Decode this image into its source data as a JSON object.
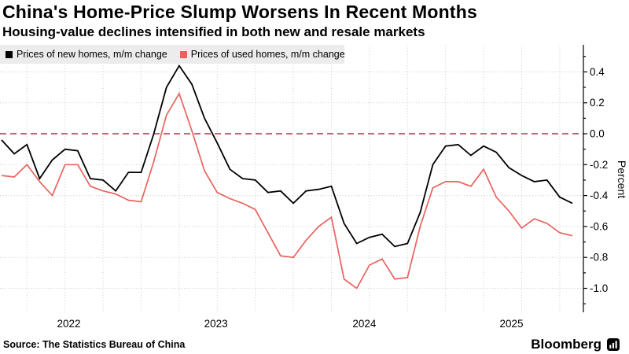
{
  "header": {
    "title": "China's Home-Price Slump Worsens In Recent Months",
    "subtitle": "Housing-value declines intensified in both new and resale markets"
  },
  "legend": [
    {
      "label": "Prices of new homes, m/m change",
      "color": "#000000"
    },
    {
      "label": "Prices of used homes, m/m change",
      "color": "#e8635e"
    }
  ],
  "footer": {
    "source": "Source: The Statistics Bureau of China",
    "brand": "Bloomberg"
  },
  "chart_data": {
    "type": "line",
    "title": "China's Home-Price Slump Worsens In Recent Months",
    "subtitle": "Housing-value declines intensified in both new and resale markets",
    "ylabel": "Percent",
    "ylim": [
      -1.15,
      0.52
    ],
    "yticks": [
      "0.4",
      "0.2",
      "0.0",
      "-0.2",
      "-0.4",
      "-0.6",
      "-0.8",
      "-1.0"
    ],
    "zero_line": {
      "value": 0.0,
      "color": "#ab3a46",
      "style": "dashed"
    },
    "grid": {
      "style": "dotted",
      "color": "#c9c9c9",
      "vertical_every_months": 3
    },
    "legend_position": "top-left",
    "axis_side": "right",
    "year_labels": [
      "2022",
      "2023",
      "2024",
      "2025"
    ],
    "x": [
      "2022-01",
      "2022-02",
      "2022-03",
      "2022-04",
      "2022-05",
      "2022-06",
      "2022-07",
      "2022-08",
      "2022-09",
      "2022-10",
      "2022-11",
      "2022-12",
      "2023-01",
      "2023-02",
      "2023-03",
      "2023-04",
      "2023-05",
      "2023-06",
      "2023-07",
      "2023-08",
      "2023-09",
      "2023-10",
      "2023-11",
      "2023-12",
      "2024-01",
      "2024-02",
      "2024-03",
      "2024-04",
      "2024-05",
      "2024-06",
      "2024-07",
      "2024-08",
      "2024-09",
      "2024-10",
      "2024-11",
      "2024-12",
      "2025-01",
      "2025-02",
      "2025-03",
      "2025-04",
      "2025-05",
      "2025-06",
      "2025-07",
      "2025-08",
      "2025-09",
      "2025-10"
    ],
    "series": [
      {
        "id": "new-homes",
        "name": "Prices of new homes, m/m change",
        "color": "#000000",
        "values": [
          -0.04,
          -0.13,
          -0.07,
          -0.29,
          -0.17,
          -0.1,
          -0.11,
          -0.29,
          -0.3,
          -0.37,
          -0.25,
          -0.25,
          0.0,
          0.3,
          0.44,
          0.32,
          0.1,
          -0.06,
          -0.23,
          -0.29,
          -0.3,
          -0.38,
          -0.37,
          -0.45,
          -0.37,
          -0.36,
          -0.34,
          -0.58,
          -0.71,
          -0.67,
          -0.65,
          -0.73,
          -0.71,
          -0.51,
          -0.2,
          -0.08,
          -0.07,
          -0.14,
          -0.08,
          -0.12,
          -0.22,
          -0.27,
          -0.31,
          -0.3,
          -0.41,
          -0.45
        ]
      },
      {
        "id": "used-homes",
        "name": "Prices of used homes, m/m change",
        "color": "#e8635e",
        "values": [
          -0.27,
          -0.28,
          -0.2,
          -0.31,
          -0.4,
          -0.2,
          -0.2,
          -0.34,
          -0.37,
          -0.39,
          -0.43,
          -0.44,
          -0.18,
          0.12,
          0.26,
          0.02,
          -0.24,
          -0.38,
          -0.42,
          -0.45,
          -0.49,
          -0.64,
          -0.79,
          -0.8,
          -0.69,
          -0.6,
          -0.54,
          -0.94,
          -1.0,
          -0.85,
          -0.81,
          -0.94,
          -0.93,
          -0.6,
          -0.35,
          -0.31,
          -0.31,
          -0.34,
          -0.23,
          -0.41,
          -0.5,
          -0.61,
          -0.55,
          -0.58,
          -0.64,
          -0.66
        ]
      }
    ]
  }
}
